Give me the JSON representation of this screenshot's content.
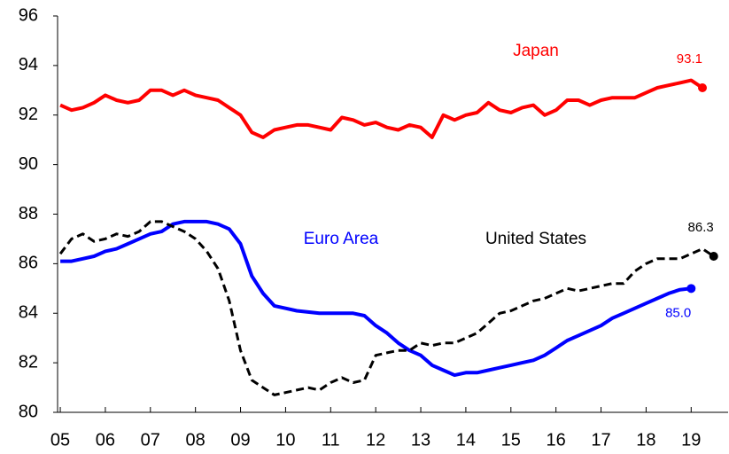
{
  "chart_data": {
    "type": "line",
    "x": [
      2005,
      2005.25,
      2005.5,
      2005.75,
      2006,
      2006.25,
      2006.5,
      2006.75,
      2007,
      2007.25,
      2007.5,
      2007.75,
      2008,
      2008.25,
      2008.5,
      2008.75,
      2009,
      2009.25,
      2009.5,
      2009.75,
      2010,
      2010.25,
      2010.5,
      2010.75,
      2011,
      2011.25,
      2011.5,
      2011.75,
      2012,
      2012.25,
      2012.5,
      2012.75,
      2013,
      2013.25,
      2013.5,
      2013.75,
      2014,
      2014.25,
      2014.5,
      2014.75,
      2015,
      2015.25,
      2015.5,
      2015.75,
      2016,
      2016.25,
      2016.5,
      2016.75,
      2017,
      2017.25,
      2017.5,
      2017.75,
      2018,
      2018.25,
      2018.5,
      2018.75,
      2019,
      2019.25,
      2019.5
    ],
    "series": [
      {
        "name": "Japan",
        "color": "#ff0000",
        "dash": false,
        "values": [
          92.4,
          92.2,
          92.3,
          92.5,
          92.8,
          92.6,
          92.5,
          92.6,
          93.0,
          93.0,
          92.8,
          93.0,
          92.8,
          92.7,
          92.6,
          92.3,
          92.0,
          91.3,
          91.1,
          91.4,
          91.5,
          91.6,
          91.6,
          91.5,
          91.4,
          91.9,
          91.8,
          91.6,
          91.7,
          91.5,
          91.4,
          91.6,
          91.5,
          91.1,
          92.0,
          91.8,
          92.0,
          92.1,
          92.5,
          92.2,
          92.1,
          92.3,
          92.4,
          92.0,
          92.2,
          92.6,
          92.6,
          92.4,
          92.6,
          92.7,
          92.7,
          92.7,
          92.9,
          93.1,
          93.2,
          93.3,
          93.4,
          93.1,
          null
        ],
        "value_labels": [
          null,
          null,
          null,
          null,
          null,
          null,
          null,
          null,
          null,
          null,
          null,
          null,
          null,
          null,
          null,
          null,
          null,
          null,
          null,
          null,
          null,
          null,
          null,
          null,
          null,
          null,
          null,
          null,
          null,
          null,
          null,
          null,
          null,
          null,
          null,
          null,
          null,
          null,
          null,
          null,
          null,
          null,
          null,
          null,
          null,
          null,
          null,
          null,
          null,
          null,
          null,
          null,
          null,
          null,
          null,
          null,
          null,
          "93.1",
          null
        ]
      },
      {
        "name": "Euro Area",
        "color": "#0000ff",
        "dash": false,
        "values": [
          86.1,
          86.1,
          86.2,
          86.3,
          86.5,
          86.6,
          86.8,
          87.0,
          87.2,
          87.3,
          87.6,
          87.7,
          87.7,
          87.7,
          87.6,
          87.4,
          86.8,
          85.5,
          84.8,
          84.3,
          84.2,
          84.1,
          84.05,
          84.0,
          84.0,
          84.0,
          84.0,
          83.9,
          83.5,
          83.2,
          82.8,
          82.5,
          82.3,
          81.9,
          81.7,
          81.5,
          81.6,
          81.6,
          81.7,
          81.8,
          81.9,
          82.0,
          82.1,
          82.3,
          82.6,
          82.9,
          83.1,
          83.3,
          83.5,
          83.8,
          84.0,
          84.2,
          84.4,
          84.6,
          84.8,
          84.95,
          85.0,
          null,
          null
        ],
        "value_labels": [
          null,
          null,
          null,
          null,
          null,
          null,
          null,
          null,
          null,
          null,
          null,
          null,
          null,
          null,
          null,
          null,
          null,
          null,
          null,
          null,
          null,
          null,
          null,
          null,
          null,
          null,
          null,
          null,
          null,
          null,
          null,
          null,
          null,
          null,
          null,
          null,
          null,
          null,
          null,
          null,
          null,
          null,
          null,
          null,
          null,
          null,
          null,
          null,
          null,
          null,
          null,
          null,
          null,
          null,
          null,
          null,
          "85.0",
          null,
          null
        ]
      },
      {
        "name": "United States",
        "color": "#000000",
        "dash": true,
        "values": [
          86.4,
          87.0,
          87.2,
          86.9,
          87.0,
          87.2,
          87.1,
          87.3,
          87.7,
          87.7,
          87.5,
          87.3,
          87.0,
          86.5,
          85.8,
          84.5,
          82.5,
          81.3,
          81.0,
          80.7,
          80.8,
          80.9,
          81.0,
          80.9,
          81.2,
          81.4,
          81.2,
          81.3,
          82.3,
          82.4,
          82.5,
          82.5,
          82.8,
          82.7,
          82.8,
          82.8,
          83.0,
          83.2,
          83.6,
          84.0,
          84.1,
          84.3,
          84.5,
          84.6,
          84.8,
          85.0,
          84.9,
          85.0,
          85.1,
          85.2,
          85.2,
          85.7,
          86.0,
          86.2,
          86.2,
          86.2,
          86.4,
          86.6,
          86.3
        ],
        "value_labels": [
          null,
          null,
          null,
          null,
          null,
          null,
          null,
          null,
          null,
          null,
          null,
          null,
          null,
          null,
          null,
          null,
          null,
          null,
          null,
          null,
          null,
          null,
          null,
          null,
          null,
          null,
          null,
          null,
          null,
          null,
          null,
          null,
          null,
          null,
          null,
          null,
          null,
          null,
          null,
          null,
          null,
          null,
          null,
          null,
          null,
          null,
          null,
          null,
          null,
          null,
          null,
          null,
          null,
          null,
          null,
          null,
          null,
          null,
          "86.3"
        ]
      }
    ],
    "xlim": [
      2004.94,
      2019.82
    ],
    "xticks": [
      {
        "value": 2005,
        "label": "05"
      },
      {
        "value": 2006,
        "label": "06"
      },
      {
        "value": 2007,
        "label": "07"
      },
      {
        "value": 2008,
        "label": "08"
      },
      {
        "value": 2009,
        "label": "09"
      },
      {
        "value": 2010,
        "label": "10"
      },
      {
        "value": 2011,
        "label": "11"
      },
      {
        "value": 2012,
        "label": "12"
      },
      {
        "value": 2013,
        "label": "13"
      },
      {
        "value": 2014,
        "label": "14"
      },
      {
        "value": 2015,
        "label": "15"
      },
      {
        "value": 2016,
        "label": "16"
      },
      {
        "value": 2017,
        "label": "17"
      },
      {
        "value": 2018,
        "label": "18"
      },
      {
        "value": 2019,
        "label": "19"
      }
    ],
    "ylim": [
      80,
      96
    ],
    "yticks": [
      80,
      82,
      84,
      86,
      88,
      90,
      92,
      94,
      96
    ],
    "grid": false
  }
}
